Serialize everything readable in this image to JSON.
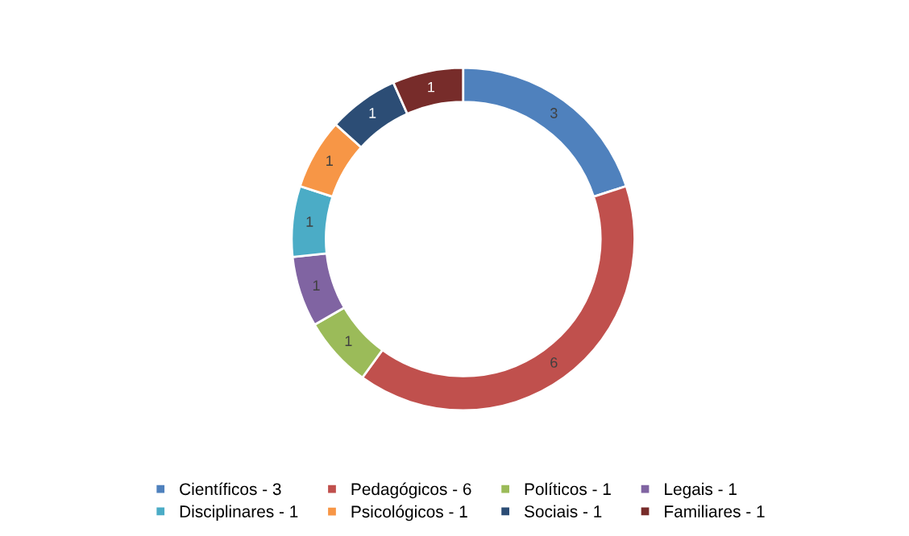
{
  "chart_data": {
    "type": "donut",
    "categories": [
      "Científicos - 3",
      "Pedagógicos - 6",
      "Políticos - 1",
      "Legais - 1",
      "Disciplinares - 1",
      "Psicológicos - 1",
      "Sociais - 1",
      "Familiares - 1"
    ],
    "values": [
      3,
      6,
      1,
      1,
      1,
      1,
      1,
      1
    ],
    "colors": [
      "#4f81bd",
      "#c0504d",
      "#9bbb59",
      "#8064a2",
      "#4bacc6",
      "#f79646",
      "#2c4d75",
      "#772c2a"
    ],
    "data_labels": true,
    "legend": "bottom"
  }
}
